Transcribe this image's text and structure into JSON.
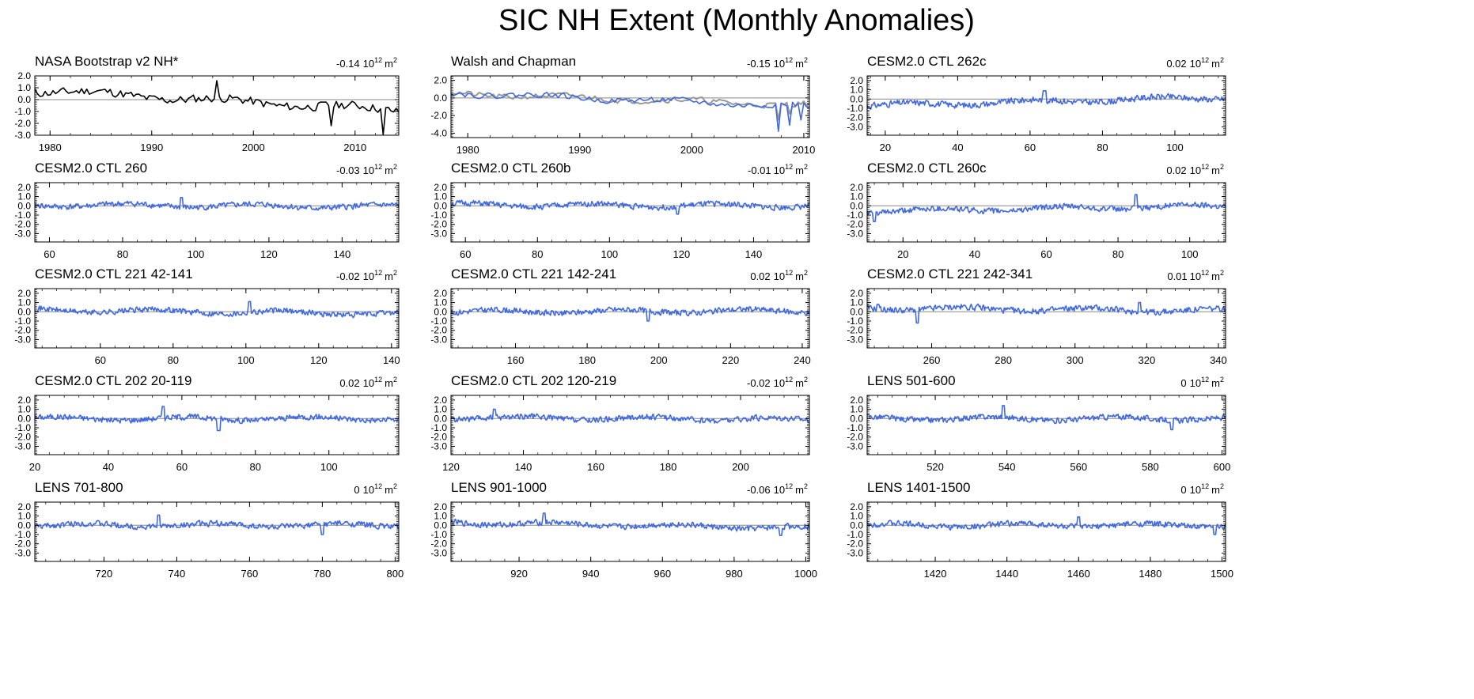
{
  "page": {
    "title": "SIC NH Extent (Monthly Anomalies)"
  },
  "colors": {
    "observed": "#000000",
    "model": "#4169e1",
    "secondary": "#999999",
    "zero_line": "#888888",
    "axis": "#000000"
  },
  "chart_data": [
    {
      "type": "line",
      "title": "NASA Bootstrap v2 NH*",
      "trend_value": "-0.14",
      "trend_units_base": "10",
      "trend_units_exp": "12",
      "trend_units_unit": "m",
      "trend_units_unit_exp": "2",
      "xlim": [
        1978.5,
        2014.3
      ],
      "xticks": [
        1980,
        1990,
        2000,
        2010
      ],
      "ylim": [
        -3.0,
        2.0
      ],
      "yticks": [
        "2.0",
        "1.0",
        "0.0",
        "-1.0",
        "-2.0",
        "-3.0"
      ],
      "series": [
        {
          "name": "NASA Bootstrap v2",
          "color": "#000000",
          "seed": 11,
          "amplitude": 0.35,
          "trend": [
            0.8,
            -0.9
          ],
          "spikes": [
            [
              2007.7,
              -2.2
            ],
            [
              2012.7,
              -3.0
            ],
            [
              1996.5,
              1.6
            ]
          ],
          "noise_points": 420
        }
      ]
    },
    {
      "type": "line",
      "title": "Walsh and Chapman",
      "trend_value": "-0.15",
      "trend_units_base": "10",
      "trend_units_exp": "12",
      "trend_units_unit": "m",
      "trend_units_unit_exp": "2",
      "xlim": [
        1978.5,
        2010.5
      ],
      "xticks": [
        1980,
        1990,
        2000,
        2010
      ],
      "ylim": [
        -4.5,
        2.5
      ],
      "yticks": [
        "2.0",
        "0.0",
        "-2.0",
        "-4.0"
      ],
      "series": [
        {
          "name": "Walsh and Chapman (grey)",
          "color": "#999999",
          "seed": 21,
          "amplitude": 0.3,
          "trend": [
            0.5,
            -0.8
          ],
          "spikes": [
            [
              2007.7,
              -2.5
            ],
            [
              2008.7,
              -1.8
            ]
          ],
          "noise_points": 380
        },
        {
          "name": "Walsh and Chapman (blue)",
          "color": "#4169e1",
          "seed": 22,
          "amplitude": 0.3,
          "trend": [
            0.6,
            -1.0
          ],
          "spikes": [
            [
              2007.7,
              -3.8
            ],
            [
              2008.8,
              -3.1
            ],
            [
              2009.8,
              -2.5
            ]
          ],
          "noise_points": 380
        }
      ]
    },
    {
      "type": "line",
      "title": "CESM2.0 CTL 262c",
      "trend_value": "0.02",
      "trend_units_base": "10",
      "trend_units_exp": "12",
      "trend_units_unit": "m",
      "trend_units_unit_exp": "2",
      "xlim": [
        15,
        114
      ],
      "xticks": [
        20,
        40,
        60,
        80,
        100
      ],
      "ylim": [
        -3.9,
        2.5
      ],
      "yticks": [
        "2.0",
        "1.0",
        "0.0",
        "-1.0",
        "-2.0",
        "-3.0"
      ],
      "series": [
        {
          "name": "CESM2.0 CTL 262c",
          "color": "#4169e1",
          "seed": 31,
          "amplitude": 0.32,
          "trend": [
            -0.7,
            0.2
          ],
          "spikes": [
            [
              64,
              0.9
            ]
          ],
          "noise_points": 1180
        }
      ]
    },
    {
      "type": "line",
      "title": "CESM2.0 CTL 260",
      "trend_value": "-0.03",
      "trend_units_base": "10",
      "trend_units_exp": "12",
      "trend_units_unit": "m",
      "trend_units_unit_exp": "2",
      "xlim": [
        56,
        155.5
      ],
      "xticks": [
        60,
        80,
        100,
        120,
        140
      ],
      "ylim": [
        -3.9,
        2.5
      ],
      "yticks": [
        "2.0",
        "1.0",
        "0.0",
        "-1.0",
        "-2.0",
        "-3.0"
      ],
      "series": [
        {
          "name": "CESM2.0 CTL 260",
          "color": "#4169e1",
          "seed": 41,
          "amplitude": 0.3,
          "trend": [
            0.1,
            -0.1
          ],
          "spikes": [
            [
              96,
              0.9
            ]
          ],
          "noise_points": 1190
        }
      ]
    },
    {
      "type": "line",
      "title": "CESM2.0 CTL 260b",
      "trend_value": "-0.01",
      "trend_units_base": "10",
      "trend_units_exp": "12",
      "trend_units_unit": "m",
      "trend_units_unit_exp": "2",
      "xlim": [
        56,
        155.5
      ],
      "xticks": [
        60,
        80,
        100,
        120,
        140
      ],
      "ylim": [
        -3.9,
        2.5
      ],
      "yticks": [
        "2.0",
        "1.0",
        "0.0",
        "-1.0",
        "-2.0",
        "-3.0"
      ],
      "series": [
        {
          "name": "CESM2.0 CTL 260b",
          "color": "#4169e1",
          "seed": 51,
          "amplitude": 0.3,
          "trend": [
            0.1,
            0.0
          ],
          "spikes": [
            [
              119,
              -0.9
            ]
          ],
          "noise_points": 1190
        }
      ]
    },
    {
      "type": "line",
      "title": "CESM2.0 CTL 260c",
      "trend_value": "0.02",
      "trend_units_base": "10",
      "trend_units_exp": "12",
      "trend_units_unit": "m",
      "trend_units_unit_exp": "2",
      "xlim": [
        10,
        110
      ],
      "xticks": [
        20,
        40,
        60,
        80,
        100
      ],
      "ylim": [
        -3.9,
        2.5
      ],
      "yticks": [
        "2.0",
        "1.0",
        "0.0",
        "-1.0",
        "-2.0",
        "-3.0"
      ],
      "series": [
        {
          "name": "CESM2.0 CTL 260c",
          "color": "#4169e1",
          "seed": 61,
          "amplitude": 0.3,
          "trend": [
            -0.6,
            0.0
          ],
          "spikes": [
            [
              12,
              -1.7
            ],
            [
              85,
              1.2
            ]
          ],
          "noise_points": 1200
        }
      ]
    },
    {
      "type": "line",
      "title": "CESM2.0 CTL 221 42-141",
      "trend_value": "-0.02",
      "trend_units_base": "10",
      "trend_units_exp": "12",
      "trend_units_unit": "m",
      "trend_units_unit_exp": "2",
      "xlim": [
        42,
        142
      ],
      "xticks": [
        60,
        80,
        100,
        120,
        140
      ],
      "ylim": [
        -3.9,
        2.5
      ],
      "yticks": [
        "2.0",
        "1.0",
        "0.0",
        "-1.0",
        "-2.0",
        "-3.0"
      ],
      "series": [
        {
          "name": "CESM2.0 CTL 221 42-141",
          "color": "#4169e1",
          "seed": 71,
          "amplitude": 0.3,
          "trend": [
            0.2,
            -0.2
          ],
          "spikes": [
            [
              101,
              1.1
            ]
          ],
          "noise_points": 1200
        }
      ]
    },
    {
      "type": "line",
      "title": "CESM2.0 CTL 221 142-241",
      "trend_value": "0.02",
      "trend_units_base": "10",
      "trend_units_exp": "12",
      "trend_units_unit": "m",
      "trend_units_unit_exp": "2",
      "xlim": [
        142,
        242
      ],
      "xticks": [
        160,
        180,
        200,
        220,
        240
      ],
      "ylim": [
        -3.9,
        2.5
      ],
      "yticks": [
        "2.0",
        "1.0",
        "0.0",
        "-1.0",
        "-2.0",
        "-3.0"
      ],
      "series": [
        {
          "name": "CESM2.0 CTL 221 142-241",
          "color": "#4169e1",
          "seed": 81,
          "amplitude": 0.3,
          "trend": [
            0.0,
            0.1
          ],
          "spikes": [
            [
              197,
              -1.0
            ]
          ],
          "noise_points": 1200
        }
      ]
    },
    {
      "type": "line",
      "title": "CESM2.0 CTL 221 242-341",
      "trend_value": "0.01",
      "trend_units_base": "10",
      "trend_units_exp": "12",
      "trend_units_unit": "m",
      "trend_units_unit_exp": "2",
      "xlim": [
        242,
        342
      ],
      "xticks": [
        260,
        280,
        300,
        320,
        340
      ],
      "ylim": [
        -3.9,
        2.5
      ],
      "yticks": [
        "2.0",
        "1.0",
        "0.0",
        "-1.0",
        "-2.0",
        "-3.0"
      ],
      "series": [
        {
          "name": "CESM2.0 CTL 221 242-341",
          "color": "#4169e1",
          "seed": 91,
          "amplitude": 0.32,
          "trend": [
            0.4,
            0.1
          ],
          "spikes": [
            [
              245,
              0.8
            ],
            [
              318,
              1.0
            ],
            [
              256,
              -1.2
            ]
          ],
          "noise_points": 1200
        }
      ]
    },
    {
      "type": "line",
      "title": "CESM2.0 CTL 202 20-119",
      "trend_value": "0.02",
      "trend_units_base": "10",
      "trend_units_exp": "12",
      "trend_units_unit": "m",
      "trend_units_unit_exp": "2",
      "xlim": [
        20,
        119
      ],
      "xticks": [
        20,
        40,
        60,
        80,
        100
      ],
      "ylim": [
        -3.9,
        2.5
      ],
      "yticks": [
        "2.0",
        "1.0",
        "0.0",
        "-1.0",
        "-2.0",
        "-3.0"
      ],
      "series": [
        {
          "name": "CESM2.0 CTL 202 20-119",
          "color": "#4169e1",
          "seed": 101,
          "amplitude": 0.3,
          "trend": [
            0.0,
            0.0
          ],
          "spikes": [
            [
              55,
              1.3
            ],
            [
              70,
              -1.3
            ]
          ],
          "noise_points": 1190
        }
      ]
    },
    {
      "type": "line",
      "title": "CESM2.0 CTL 202 120-219",
      "trend_value": "-0.02",
      "trend_units_base": "10",
      "trend_units_exp": "12",
      "trend_units_unit": "m",
      "trend_units_unit_exp": "2",
      "xlim": [
        120,
        219
      ],
      "xticks": [
        120,
        140,
        160,
        180,
        200
      ],
      "ylim": [
        -3.9,
        2.5
      ],
      "yticks": [
        "2.0",
        "1.0",
        "0.0",
        "-1.0",
        "-2.0",
        "-3.0"
      ],
      "series": [
        {
          "name": "CESM2.0 CTL 202 120-219",
          "color": "#4169e1",
          "seed": 111,
          "amplitude": 0.3,
          "trend": [
            0.1,
            -0.1
          ],
          "spikes": [
            [
              132,
              1.0
            ]
          ],
          "noise_points": 1190
        }
      ]
    },
    {
      "type": "line",
      "title": "LENS 501-600",
      "trend_value": "0",
      "trend_units_base": "10",
      "trend_units_exp": "12",
      "trend_units_unit": "m",
      "trend_units_unit_exp": "2",
      "xlim": [
        501,
        601
      ],
      "xticks": [
        520,
        540,
        560,
        580,
        600
      ],
      "ylim": [
        -3.9,
        2.5
      ],
      "yticks": [
        "2.0",
        "1.0",
        "0.0",
        "-1.0",
        "-2.0",
        "-3.0"
      ],
      "series": [
        {
          "name": "LENS 501-600",
          "color": "#4169e1",
          "seed": 121,
          "amplitude": 0.3,
          "trend": [
            0.0,
            0.0
          ],
          "spikes": [
            [
              539,
              1.4
            ],
            [
              586,
              -1.2
            ]
          ],
          "noise_points": 1200
        }
      ]
    },
    {
      "type": "line",
      "title": "LENS 701-800",
      "trend_value": "0",
      "trend_units_base": "10",
      "trend_units_exp": "12",
      "trend_units_unit": "m",
      "trend_units_unit_exp": "2",
      "xlim": [
        701,
        801
      ],
      "xticks": [
        720,
        740,
        760,
        780,
        800
      ],
      "ylim": [
        -3.9,
        2.5
      ],
      "yticks": [
        "2.0",
        "1.0",
        "0.0",
        "-1.0",
        "-2.0",
        "-3.0"
      ],
      "series": [
        {
          "name": "LENS 701-800",
          "color": "#4169e1",
          "seed": 131,
          "amplitude": 0.3,
          "trend": [
            0.0,
            0.0
          ],
          "spikes": [
            [
              735,
              1.1
            ],
            [
              780,
              -1.0
            ]
          ],
          "noise_points": 1200
        }
      ]
    },
    {
      "type": "line",
      "title": "LENS 901-1000",
      "trend_value": "-0.06",
      "trend_units_base": "10",
      "trend_units_exp": "12",
      "trend_units_unit": "m",
      "trend_units_unit_exp": "2",
      "xlim": [
        901,
        1001
      ],
      "xticks": [
        920,
        940,
        960,
        980,
        1000
      ],
      "ylim": [
        -3.9,
        2.5
      ],
      "yticks": [
        "2.0",
        "1.0",
        "0.0",
        "-1.0",
        "-2.0",
        "-3.0"
      ],
      "series": [
        {
          "name": "LENS 901-1000",
          "color": "#4169e1",
          "seed": 141,
          "amplitude": 0.3,
          "trend": [
            0.3,
            -0.3
          ],
          "spikes": [
            [
              927,
              1.3
            ],
            [
              993,
              -1.1
            ]
          ],
          "noise_points": 1200
        }
      ]
    },
    {
      "type": "line",
      "title": "LENS 1401-1500",
      "trend_value": "0",
      "trend_units_base": "10",
      "trend_units_exp": "12",
      "trend_units_unit": "m",
      "trend_units_unit_exp": "2",
      "xlim": [
        1401,
        1501
      ],
      "xticks": [
        1420,
        1440,
        1460,
        1480,
        1500
      ],
      "ylim": [
        -3.9,
        2.5
      ],
      "yticks": [
        "2.0",
        "1.0",
        "0.0",
        "-1.0",
        "-2.0",
        "-3.0"
      ],
      "series": [
        {
          "name": "LENS 1401-1500",
          "color": "#4169e1",
          "seed": 151,
          "amplitude": 0.3,
          "trend": [
            0.0,
            0.0
          ],
          "spikes": [
            [
              1498,
              -1.0
            ],
            [
              1460,
              0.9
            ]
          ],
          "noise_points": 1200
        }
      ]
    }
  ]
}
